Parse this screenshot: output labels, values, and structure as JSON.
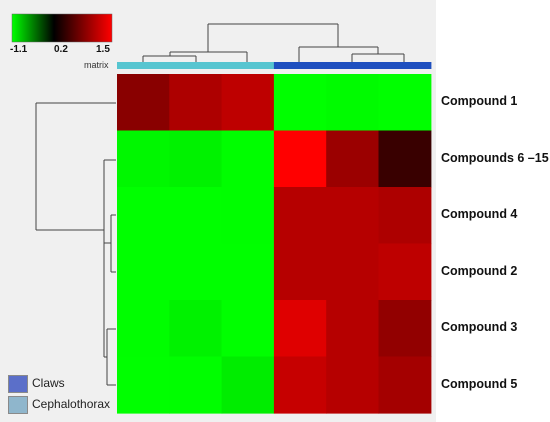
{
  "chart_data": {
    "type": "heatmap",
    "title": "",
    "annotation_label": "matrix",
    "color_scale": {
      "min": -1.1,
      "mid": 0.2,
      "max": 1.5,
      "tick_labels": [
        "-1.1",
        "0.2",
        "1.5"
      ],
      "colors": {
        "low": "#00ff00",
        "mid": "#000000",
        "high": "#ff0000"
      }
    },
    "rows": [
      "Compound 1",
      "Compounds 6 –15",
      "Compound 4",
      "Compound 2",
      "Compound 3",
      "Compound 5"
    ],
    "column_groups": [
      "Cephalothorax",
      "Cephalothorax",
      "Cephalothorax",
      "Claws",
      "Claws",
      "Claws"
    ],
    "values": [
      [
        0.8,
        1.0,
        1.1,
        -1.1,
        -1.0,
        -1.1
      ],
      [
        -0.95,
        -0.9,
        -1.05,
        1.5,
        0.9,
        0.4
      ],
      [
        -1.1,
        -1.1,
        -1.05,
        1.05,
        1.05,
        1.0
      ],
      [
        -1.1,
        -1.1,
        -1.1,
        1.05,
        1.05,
        1.1
      ],
      [
        -1.05,
        -0.9,
        -1.1,
        1.3,
        1.05,
        0.85
      ],
      [
        -1.1,
        -1.05,
        -0.85,
        1.15,
        1.05,
        0.95
      ]
    ],
    "group_colors": {
      "Cephalothorax": "#56c5d0",
      "Claws": "#1e4fbf"
    },
    "legend": {
      "placement": "bottom-left",
      "entries": [
        {
          "name": "Claws",
          "color": "#5b6fc9"
        },
        {
          "name": "Cephalothorax",
          "color": "#8fb6cc"
        }
      ]
    }
  }
}
